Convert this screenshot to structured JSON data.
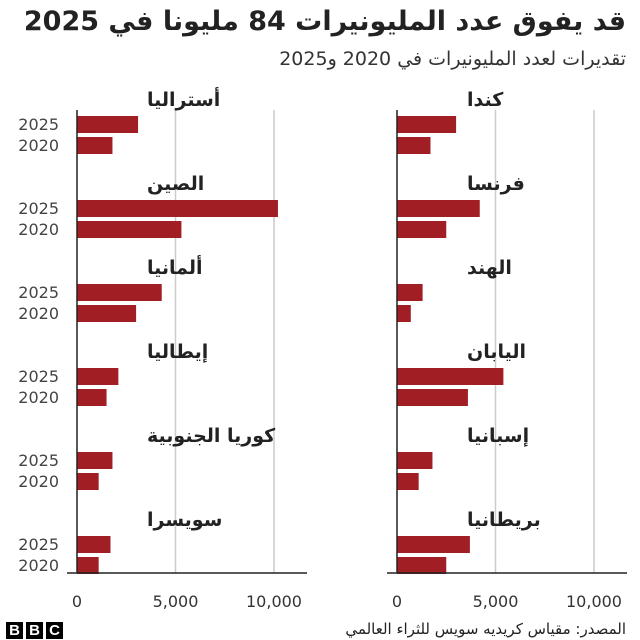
{
  "header": {
    "title": "قد يفوق عدد المليونيرات 84 مليونا في 2025",
    "subtitle": "تقديرات لعدد المليونيرات في 2020 و2025"
  },
  "footer": {
    "source": "المصدر: مقياس كريديه سويس للثراء العالمي",
    "logo_letters": [
      "B",
      "B",
      "C"
    ]
  },
  "colors": {
    "bar": "#a01e24",
    "grid": "#cccccc",
    "axis": "#222222"
  },
  "chart_data": {
    "type": "bar",
    "orientation": "horizontal",
    "title": "قد يفوق عدد المليونيرات 84 مليونا في 2025",
    "subtitle": "تقديرات لعدد المليونيرات في 2020 و2025",
    "series_labels": [
      "2025",
      "2020"
    ],
    "xlim": [
      0,
      12000
    ],
    "ticks": [
      0,
      5000,
      10000
    ],
    "tick_labels": [
      "0",
      "5,000",
      "10,000"
    ],
    "panels": [
      {
        "name": "left",
        "countries": [
          {
            "label": "أستراليا",
            "v2025": 3100,
            "v2020": 1800
          },
          {
            "label": "الصين",
            "v2025": 10200,
            "v2020": 5300
          },
          {
            "label": "ألمانيا",
            "v2025": 4300,
            "v2020": 3000
          },
          {
            "label": "إيطاليا",
            "v2025": 2100,
            "v2020": 1500
          },
          {
            "label": "كوريا الجنوبية",
            "v2025": 1800,
            "v2020": 1100
          },
          {
            "label": "سويسرا",
            "v2025": 1700,
            "v2020": 1100
          }
        ]
      },
      {
        "name": "right",
        "countries": [
          {
            "label": "كندا",
            "v2025": 3000,
            "v2020": 1700
          },
          {
            "label": "فرنسا",
            "v2025": 4200,
            "v2020": 2500
          },
          {
            "label": "الهند",
            "v2025": 1300,
            "v2020": 700
          },
          {
            "label": "اليابان",
            "v2025": 5400,
            "v2020": 3600
          },
          {
            "label": "إسبانيا",
            "v2025": 1800,
            "v2020": 1100
          },
          {
            "label": "بريطانيا",
            "v2025": 3700,
            "v2020": 2500
          }
        ]
      }
    ]
  }
}
